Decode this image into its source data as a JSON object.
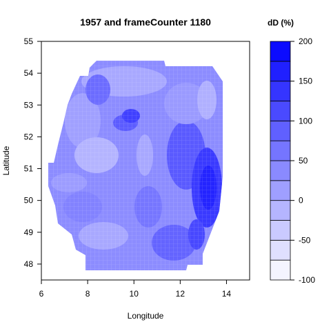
{
  "chart_data": {
    "type": "heatmap",
    "title": "1957 and frameCounter 1180",
    "xlabel": "Longitude",
    "ylabel": "Latitude",
    "xlim": [
      6,
      15
    ],
    "ylim": [
      47.5,
      55
    ],
    "x_ticks": [
      "6",
      "8",
      "10",
      "12",
      "14"
    ],
    "y_ticks": [
      "48",
      "49",
      "50",
      "51",
      "52",
      "53",
      "54",
      "55"
    ],
    "colorbar": {
      "title": "dD (%)",
      "range": [
        -100,
        200
      ],
      "step": 25,
      "ticks": [
        "-100",
        "-50",
        "0",
        "50",
        "100",
        "150",
        "200"
      ]
    },
    "grid": false
  }
}
